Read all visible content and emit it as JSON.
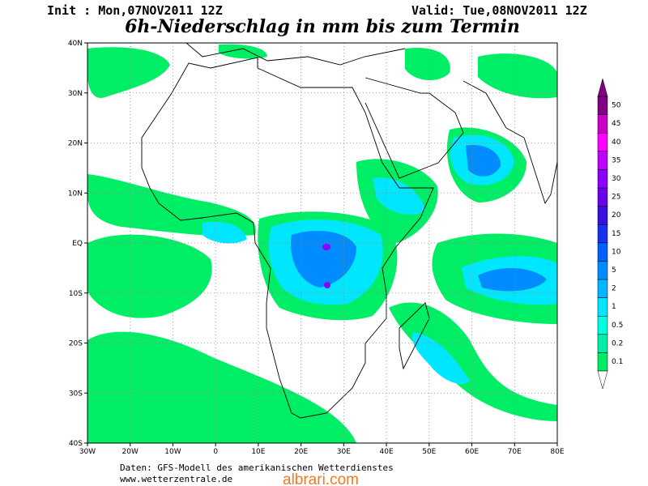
{
  "header": {
    "init": "Init : Mon,07NOV2011 12Z",
    "valid": "Valid: Tue,08NOV2011 12Z",
    "title": "6h-Niederschlag in mm bis zum Termin"
  },
  "map": {
    "lat_labels": [
      "40N",
      "30N",
      "20N",
      "10N",
      "EQ",
      "10S",
      "20S",
      "30S",
      "40S"
    ],
    "lon_labels": [
      "30W",
      "20W",
      "10W",
      "0",
      "10E",
      "20E",
      "30E",
      "40E",
      "50E",
      "60E",
      "70E",
      "80E"
    ]
  },
  "legend": {
    "levels": [
      0.1,
      0.2,
      0.5,
      1,
      2,
      5,
      10,
      15,
      20,
      25,
      30,
      35,
      40,
      45,
      50
    ],
    "colors": [
      "#00ee66",
      "#00f0a8",
      "#00ffe0",
      "#00e6ff",
      "#00b8ff",
      "#008cff",
      "#0060ff",
      "#1a30f0",
      "#3a10e0",
      "#6a00ea",
      "#8c00ff",
      "#c000ff",
      "#ff00ff",
      "#c800c8",
      "#820082"
    ]
  },
  "footer": {
    "source": "Daten: GFS-Modell des amerikanischen Wetterdienstes",
    "url": "www.wetterzentrale.de",
    "watermark": "albrari.com"
  }
}
